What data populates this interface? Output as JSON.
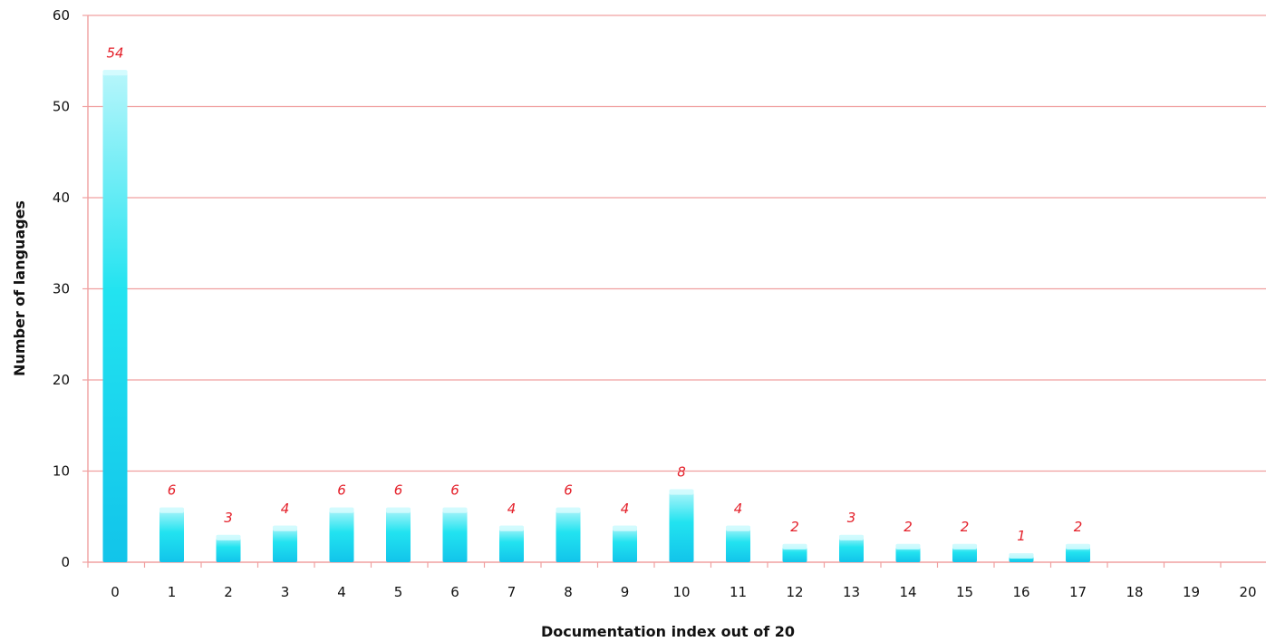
{
  "chart_data": {
    "type": "bar",
    "categories": [
      "0",
      "1",
      "2",
      "3",
      "4",
      "5",
      "6",
      "7",
      "8",
      "9",
      "10",
      "11",
      "12",
      "13",
      "14",
      "15",
      "16",
      "17",
      "18",
      "19",
      "20"
    ],
    "values": [
      54,
      6,
      3,
      4,
      6,
      6,
      6,
      4,
      6,
      4,
      8,
      4,
      2,
      3,
      2,
      2,
      1,
      2,
      null,
      null,
      null
    ],
    "data_labels": [
      "54",
      "6",
      "3",
      "4",
      "6",
      "6",
      "6",
      "4",
      "6",
      "4",
      "8",
      "4",
      "2",
      "3",
      "2",
      "2",
      "1",
      "2",
      "",
      "",
      ""
    ],
    "title": "",
    "xlabel": "Documentation index out of 20",
    "ylabel": "Number of languages",
    "ylim": [
      0,
      60
    ],
    "yticks": [
      0,
      10,
      20,
      30,
      40,
      50,
      60
    ],
    "ytick_labels": [
      "0",
      "10",
      "20",
      "30",
      "40",
      "50",
      "60"
    ],
    "grid": "horizontal",
    "legend": "none",
    "colors": {
      "bar_top": "#b8f6fb",
      "bar_mid": "#22e3f0",
      "bar_bottom": "#12c4ea",
      "gridline": "#f0a0a0",
      "data_label": "#e4202a"
    }
  }
}
